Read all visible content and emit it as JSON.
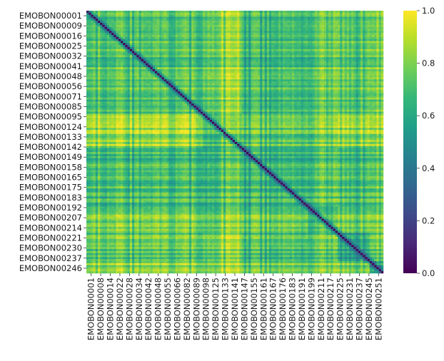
{
  "chart_data": {
    "type": "heatmap",
    "title": "",
    "xlabel": "",
    "ylabel": "",
    "colormap": "viridis",
    "colormap_stops": [
      "#440154",
      "#482878",
      "#3e4989",
      "#31688e",
      "#26828e",
      "#1f9e89",
      "#35b779",
      "#6ece58",
      "#b5de2b",
      "#fde725"
    ],
    "n_rows": 130,
    "n_cols": 130,
    "row_ticks": [
      "EMOBON00001",
      "EMOBON00009",
      "EMOBON00016",
      "EMOBON00025",
      "EMOBON00032",
      "EMOBON00041",
      "EMOBON00048",
      "EMOBON00056",
      "EMOBON00071",
      "EMOBON00085",
      "EMOBON00095",
      "EMOBON00124",
      "EMOBON00133",
      "EMOBON00142",
      "EMOBON00149",
      "EMOBON00158",
      "EMOBON00165",
      "EMOBON00175",
      "EMOBON00183",
      "EMOBON00192",
      "EMOBON00207",
      "EMOBON00214",
      "EMOBON00221",
      "EMOBON00230",
      "EMOBON00237",
      "EMOBON00246"
    ],
    "col_ticks": [
      "EMOBON00001",
      "EMOBON00008",
      "EMOBON00014",
      "EMOBON00022",
      "EMOBON00028",
      "EMOBON00034",
      "EMOBON00042",
      "EMOBON00048",
      "EMOBON00055",
      "EMOBON00066",
      "EMOBON00082",
      "EMOBON00089",
      "EMOBON00098",
      "EMOBON00125",
      "EMOBON00133",
      "EMOBON00141",
      "EMOBON00147",
      "EMOBON00155",
      "EMOBON00161",
      "EMOBON00167",
      "EMOBON00176",
      "EMOBON00183",
      "EMOBON00191",
      "EMOBON00199",
      "EMOBON00211",
      "EMOBON00217",
      "EMOBON00225",
      "EMOBON00231",
      "EMOBON00237",
      "EMOBON00245",
      "EMOBON00251"
    ],
    "diagonal_value": 0.0,
    "typical_range": [
      0.45,
      0.95
    ],
    "colorbar": {
      "range": [
        0.0,
        1.0
      ],
      "ticks": [
        "0.0",
        "0.2",
        "0.4",
        "0.6",
        "0.8",
        "1.0"
      ]
    }
  }
}
